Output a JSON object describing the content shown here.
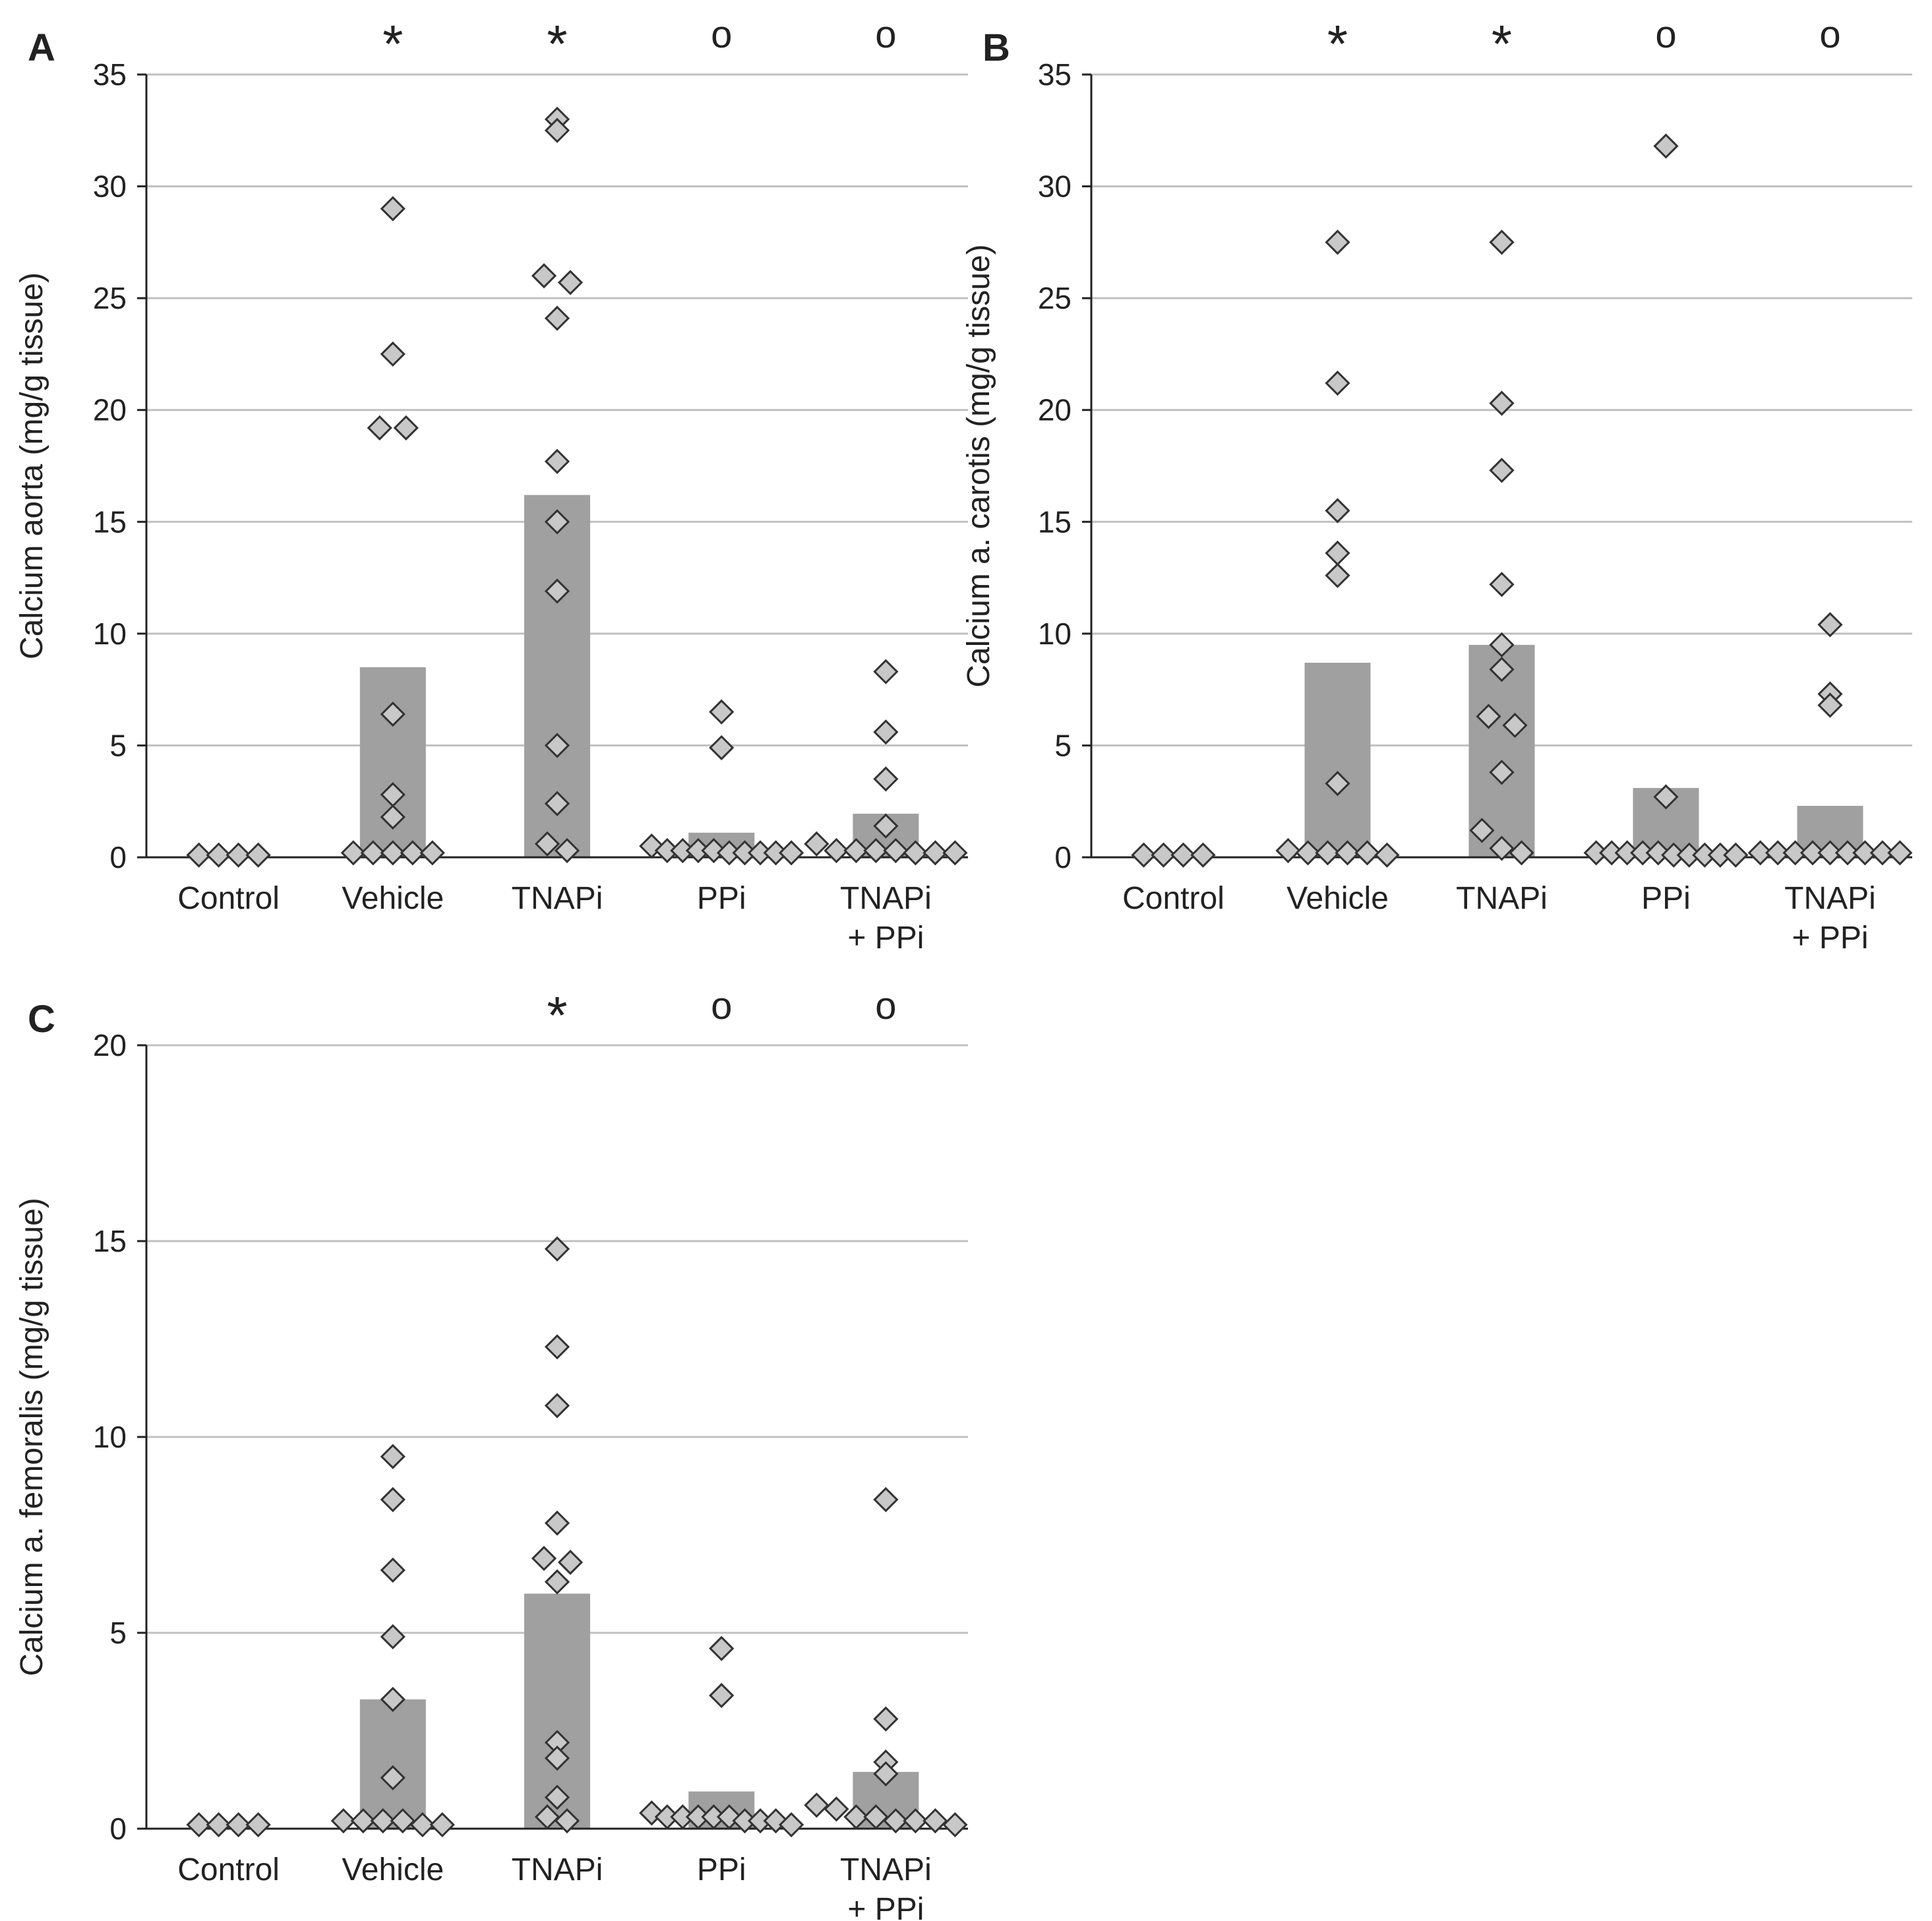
{
  "figure": {
    "panels": [
      {
        "letter": "A",
        "chart_data": {
          "type": "bar",
          "categories": [
            [
              "Control"
            ],
            [
              "Vehicle"
            ],
            [
              "TNAPi"
            ],
            [
              "PPi"
            ],
            [
              "TNAPi",
              "+ PPi"
            ]
          ],
          "values": [
            0,
            8.5,
            16.2,
            1.1,
            1.95
          ],
          "points": [
            [
              0.1,
              0.1,
              0.1,
              0.1
            ],
            [
              29,
              22.5,
              19.2,
              19.2,
              6.4,
              2.8,
              1.8,
              0.2,
              0.2,
              0.2,
              0.2,
              0.2
            ],
            [
              33,
              32.5,
              26,
              25.7,
              24.1,
              17.7,
              15,
              11.9,
              5,
              2.4,
              0.6,
              0.3
            ],
            [
              6.5,
              4.9,
              0.5,
              0.3,
              0.3,
              0.3,
              0.3,
              0.2,
              0.2,
              0.2,
              0.2,
              0.2
            ],
            [
              8.3,
              5.6,
              3.5,
              1.4,
              0.6,
              0.3,
              0.3,
              0.3,
              0.3,
              0.2,
              0.2,
              0.2
            ]
          ],
          "significance": [
            "",
            "*",
            "*",
            "o",
            "o"
          ],
          "ylabel": "Calcium aorta (mg/g tissue)",
          "ylim": [
            0,
            35
          ],
          "yticks": [
            0,
            5,
            10,
            15,
            20,
            25,
            30,
            35
          ],
          "grid": true
        }
      },
      {
        "letter": "B",
        "chart_data": {
          "type": "bar",
          "categories": [
            [
              "Control"
            ],
            [
              "Vehicle"
            ],
            [
              "TNAPi"
            ],
            [
              "PPi"
            ],
            [
              "TNAPi",
              "+ PPi"
            ]
          ],
          "values": [
            0,
            8.7,
            9.5,
            3.1,
            2.3
          ],
          "points": [
            [
              0.1,
              0.1,
              0.1,
              0.1
            ],
            [
              27.5,
              21.2,
              15.5,
              13.6,
              12.6,
              3.3,
              0.3,
              0.2,
              0.2,
              0.2,
              0.2,
              0.1
            ],
            [
              27.5,
              20.3,
              17.3,
              12.2,
              9.5,
              8.4,
              6.3,
              5.9,
              3.8,
              1.2,
              0.4,
              0.2
            ],
            [
              31.8,
              2.7,
              0.2,
              0.2,
              0.2,
              0.2,
              0.2,
              0.1,
              0.1,
              0.1,
              0.1,
              0.1
            ],
            [
              10.4,
              7.3,
              6.8,
              0.2,
              0.2,
              0.2,
              0.2,
              0.2,
              0.2,
              0.2,
              0.2,
              0.2
            ]
          ],
          "significance": [
            "",
            "*",
            "*",
            "o",
            "o"
          ],
          "ylabel": "Calcium a. carotis (mg/g tissue)",
          "ylim": [
            0,
            35
          ],
          "yticks": [
            0,
            5,
            10,
            15,
            20,
            25,
            30,
            35
          ],
          "grid": true
        }
      },
      {
        "letter": "C",
        "chart_data": {
          "type": "bar",
          "categories": [
            [
              "Control"
            ],
            [
              "Vehicle"
            ],
            [
              "TNAPi"
            ],
            [
              "PPi"
            ],
            [
              "TNAPi",
              "+ PPi"
            ]
          ],
          "values": [
            0,
            3.3,
            6.0,
            0.95,
            1.45
          ],
          "points": [
            [
              0.1,
              0.1,
              0.1,
              0.1
            ],
            [
              9.5,
              8.4,
              6.6,
              4.9,
              3.3,
              1.3,
              0.2,
              0.2,
              0.2,
              0.2,
              0.1,
              0.1
            ],
            [
              14.8,
              12.3,
              10.8,
              7.8,
              6.9,
              6.8,
              6.3,
              2.2,
              1.8,
              0.8,
              0.3,
              0.2
            ],
            [
              4.6,
              3.4,
              0.4,
              0.3,
              0.3,
              0.3,
              0.3,
              0.3,
              0.2,
              0.2,
              0.2,
              0.1
            ],
            [
              8.4,
              2.8,
              1.7,
              1.4,
              0.6,
              0.5,
              0.3,
              0.3,
              0.2,
              0.2,
              0.2,
              0.1
            ]
          ],
          "significance": [
            "",
            "",
            "*",
            "o",
            "o"
          ],
          "ylabel": "Calcium a. femoralis (mg/g tissue)",
          "ylim": [
            0,
            20
          ],
          "yticks": [
            0,
            5,
            10,
            15,
            20
          ],
          "grid": true
        }
      }
    ],
    "colors": {
      "bar": "#a0a0a0",
      "marker_fill": "#c8c8c8",
      "marker_stroke": "#333333",
      "gridline": "#c0c0c0",
      "axis": "#222222",
      "text": "#222222"
    }
  }
}
